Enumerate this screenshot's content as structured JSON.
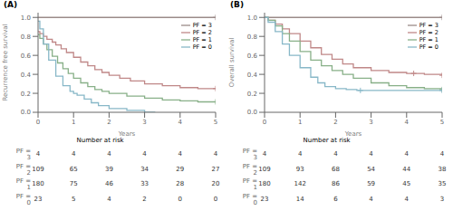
{
  "chart_data": [
    {
      "type": "step",
      "title": "(A)",
      "xlabel": "Years",
      "ylabel": "Recurrence free survival",
      "xlim": [
        0,
        5
      ],
      "ylim": [
        0.0,
        1.05
      ],
      "xticks": [
        0,
        1,
        2,
        3,
        4,
        5
      ],
      "yticks": [
        {
          "value": 0.0,
          "label": "0.0"
        },
        0.2,
        0.4,
        0.6,
        0.8,
        {
          "value": 1.0,
          "label": "1.0"
        }
      ],
      "grid": false,
      "legend": "upper right",
      "series": [
        {
          "name": "PF = 3",
          "color": "#9B8B89",
          "x": [
            0,
            5.0
          ],
          "values": [
            1.0,
            1.0
          ],
          "censor_x": [
            5.0
          ],
          "censor_values": [
            1.0
          ]
        },
        {
          "name": "PF = 2",
          "color": "#C08888",
          "x": [
            0,
            0.05,
            0.15,
            0.25,
            0.4,
            0.5,
            0.65,
            0.8,
            1.0,
            1.2,
            1.4,
            1.6,
            1.8,
            2.0,
            2.3,
            2.6,
            3.0,
            3.5,
            4.0,
            4.5,
            5.0
          ],
          "values": [
            0.85,
            0.83,
            0.8,
            0.77,
            0.74,
            0.71,
            0.67,
            0.63,
            0.58,
            0.53,
            0.49,
            0.45,
            0.42,
            0.39,
            0.36,
            0.33,
            0.3,
            0.28,
            0.26,
            0.25,
            0.25
          ],
          "censor_x": [
            5.0
          ],
          "censor_values": [
            0.25
          ]
        },
        {
          "name": "PF = 1",
          "color": "#88B088",
          "x": [
            0,
            0.05,
            0.15,
            0.25,
            0.4,
            0.55,
            0.7,
            0.85,
            1.0,
            1.2,
            1.4,
            1.6,
            1.8,
            2.0,
            2.5,
            3.0,
            3.5,
            4.0,
            4.5,
            5.0
          ],
          "values": [
            0.82,
            0.78,
            0.72,
            0.66,
            0.59,
            0.52,
            0.46,
            0.41,
            0.36,
            0.31,
            0.27,
            0.24,
            0.22,
            0.2,
            0.17,
            0.15,
            0.13,
            0.12,
            0.11,
            0.11
          ],
          "censor_x": [
            5.0
          ],
          "censor_values": [
            0.11
          ]
        },
        {
          "name": "PF = 0",
          "color": "#88B8C8",
          "x": [
            0,
            0.05,
            0.15,
            0.3,
            0.5,
            0.7,
            0.9,
            1.0,
            1.1,
            1.3,
            1.5,
            1.7,
            2.0,
            2.5,
            3.0,
            3.3
          ],
          "values": [
            0.96,
            0.88,
            0.72,
            0.55,
            0.38,
            0.28,
            0.22,
            0.2,
            0.18,
            0.14,
            0.1,
            0.07,
            0.04,
            0.02,
            0.0,
            0.0
          ],
          "censor_x": [],
          "censor_values": []
        }
      ],
      "at_risk": {
        "title": "Number at risk",
        "x": [
          0,
          1,
          2,
          3,
          4,
          5
        ],
        "rows": [
          {
            "name": "PF = 3",
            "values": [
              4,
              4,
              4,
              4,
              4,
              4
            ]
          },
          {
            "name": "PF = 2",
            "values": [
              109,
              65,
              39,
              34,
              29,
              27
            ]
          },
          {
            "name": "PF = 1",
            "values": [
              180,
              75,
              46,
              33,
              28,
              20
            ]
          },
          {
            "name": "PF = 0",
            "values": [
              23,
              5,
              4,
              2,
              0,
              0
            ]
          }
        ]
      }
    },
    {
      "type": "step",
      "title": "(B)",
      "xlabel": "Years",
      "ylabel": "Overall survival",
      "xlim": [
        0,
        5
      ],
      "ylim": [
        0.0,
        1.05
      ],
      "xticks": [
        0,
        1,
        2,
        3,
        4,
        5
      ],
      "yticks": [
        {
          "value": 0.0,
          "label": "0.0"
        },
        0.2,
        0.4,
        0.6,
        0.8,
        {
          "value": 1.0,
          "label": "1.0"
        }
      ],
      "grid": false,
      "legend": "upper right",
      "series": [
        {
          "name": "PF = 3",
          "color": "#9B8B89",
          "x": [
            0,
            5.0
          ],
          "values": [
            1.0,
            1.0
          ],
          "censor_x": [
            5.0
          ],
          "censor_values": [
            1.0
          ]
        },
        {
          "name": "PF = 2",
          "color": "#C08888",
          "x": [
            0,
            0.1,
            0.3,
            0.5,
            0.7,
            1.0,
            1.3,
            1.6,
            1.9,
            2.2,
            2.5,
            3.0,
            3.5,
            4.0,
            4.5,
            5.0
          ],
          "values": [
            1.0,
            0.97,
            0.93,
            0.88,
            0.83,
            0.75,
            0.68,
            0.61,
            0.56,
            0.51,
            0.47,
            0.44,
            0.42,
            0.41,
            0.4,
            0.39
          ],
          "censor_x": [
            4.2,
            5.0
          ],
          "censor_values": [
            0.41,
            0.39
          ]
        },
        {
          "name": "PF = 1",
          "color": "#88B088",
          "x": [
            0,
            0.1,
            0.3,
            0.5,
            0.7,
            1.0,
            1.3,
            1.6,
            1.9,
            2.2,
            2.5,
            3.0,
            3.5,
            4.0,
            4.5,
            5.0
          ],
          "values": [
            1.0,
            0.97,
            0.91,
            0.83,
            0.75,
            0.64,
            0.55,
            0.49,
            0.44,
            0.4,
            0.36,
            0.31,
            0.28,
            0.26,
            0.25,
            0.24
          ],
          "censor_x": [
            5.0
          ],
          "censor_values": [
            0.24
          ]
        },
        {
          "name": "PF = 0",
          "color": "#88B8C8",
          "x": [
            0,
            0.1,
            0.3,
            0.5,
            0.7,
            1.0,
            1.3,
            1.5,
            1.7,
            2.0,
            2.3,
            2.6,
            3.0,
            3.5,
            4.0,
            4.5,
            5.0
          ],
          "values": [
            1.0,
            0.95,
            0.85,
            0.72,
            0.6,
            0.47,
            0.37,
            0.31,
            0.27,
            0.25,
            0.24,
            0.23,
            0.23,
            0.23,
            0.23,
            0.23,
            0.23
          ],
          "censor_x": [
            2.7,
            5.0
          ],
          "censor_values": [
            0.23,
            0.23
          ]
        }
      ],
      "at_risk": {
        "title": "Number at risk",
        "x": [
          0,
          1,
          2,
          3,
          4,
          5
        ],
        "rows": [
          {
            "name": "PF = 3",
            "values": [
              4,
              4,
              4,
              4,
              4,
              4
            ]
          },
          {
            "name": "PF = 2",
            "values": [
              109,
              93,
              68,
              54,
              44,
              38
            ]
          },
          {
            "name": "PF = 1",
            "values": [
              180,
              142,
              86,
              59,
              45,
              35
            ]
          },
          {
            "name": "PF = 0",
            "values": [
              23,
              14,
              6,
              4,
              4,
              3
            ]
          }
        ]
      }
    }
  ]
}
